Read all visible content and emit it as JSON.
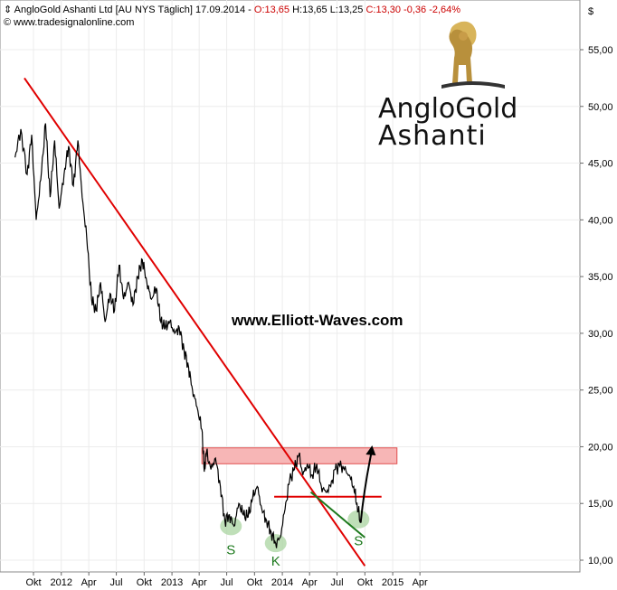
{
  "header": {
    "symbol_icon": "instrument-icon",
    "title": "AngloGold Ashanti Ltd",
    "exchange": "[AU NYS  Täglich]",
    "date": "17.09.2014",
    "open": "O:13,65",
    "high": "H:13,65",
    "low": "L:13,25",
    "close": "C:13,30",
    "change": "-0,36",
    "change_pct": "-2,64%",
    "source": "© www.tradesignalonline.com"
  },
  "watermark": "www.Elliott-Waves.com",
  "logo": {
    "line1": "AngloGold",
    "line2": "Ashanti",
    "icon": "lion-icon"
  },
  "colors": {
    "price": "#000000",
    "trendline": "#e00000",
    "resistance_band": "#f7b6b6",
    "support": "#e00000",
    "green": "#1e7a1e",
    "green_fill": "#a9d4a0"
  },
  "chart_data": {
    "type": "line",
    "currency_label": "$",
    "y_ticks": [
      "55,00",
      "50,00",
      "45,00",
      "40,00",
      "35,00",
      "30,00",
      "25,00",
      "20,00",
      "15,00",
      "10,00"
    ],
    "y_tick_values": [
      55,
      50,
      45,
      40,
      35,
      30,
      25,
      20,
      15,
      10
    ],
    "x_ticks": [
      "Okt",
      "2012",
      "Apr",
      "Jul",
      "Okt",
      "2013",
      "Apr",
      "Jul",
      "Okt",
      "2014",
      "Apr",
      "Jul",
      "Okt",
      "2015",
      "Apr"
    ],
    "x_tick_dates": [
      "2011-10",
      "2012-01",
      "2012-04",
      "2012-07",
      "2012-10",
      "2013-01",
      "2013-04",
      "2013-07",
      "2013-10",
      "2014-01",
      "2014-04",
      "2014-07",
      "2014-10",
      "2015-01",
      "2015-04"
    ],
    "ylim": [
      9.5,
      57.5
    ],
    "series": [
      {
        "values": [
          [
            "2011-08-01",
            45.5
          ],
          [
            "2011-08-20",
            48.0
          ],
          [
            "2011-09-10",
            44.0
          ],
          [
            "2011-09-25",
            47.5
          ],
          [
            "2011-10-10",
            40.0
          ],
          [
            "2011-10-25",
            43.5
          ],
          [
            "2011-11-10",
            48.5
          ],
          [
            "2011-11-25",
            42.0
          ],
          [
            "2011-12-10",
            47.0
          ],
          [
            "2011-12-25",
            41.0
          ],
          [
            "2012-01-10",
            44.0
          ],
          [
            "2012-01-25",
            46.5
          ],
          [
            "2012-02-10",
            43.0
          ],
          [
            "2012-02-25",
            47.0
          ],
          [
            "2012-03-10",
            42.0
          ],
          [
            "2012-03-25",
            38.5
          ],
          [
            "2012-04-10",
            33.0
          ],
          [
            "2012-04-25",
            32.0
          ],
          [
            "2012-05-10",
            34.5
          ],
          [
            "2012-05-25",
            31.0
          ],
          [
            "2012-06-10",
            33.5
          ],
          [
            "2012-06-25",
            32.0
          ],
          [
            "2012-07-10",
            36.0
          ],
          [
            "2012-07-25",
            33.0
          ],
          [
            "2012-08-10",
            34.5
          ],
          [
            "2012-08-25",
            32.5
          ],
          [
            "2012-09-10",
            35.0
          ],
          [
            "2012-09-25",
            36.5
          ],
          [
            "2012-10-10",
            34.5
          ],
          [
            "2012-10-25",
            33.0
          ],
          [
            "2012-11-10",
            34.0
          ],
          [
            "2012-11-25",
            31.0
          ],
          [
            "2012-12-10",
            30.5
          ],
          [
            "2012-12-25",
            31.0
          ],
          [
            "2013-01-10",
            30.0
          ],
          [
            "2013-01-25",
            30.5
          ],
          [
            "2013-02-10",
            28.5
          ],
          [
            "2013-02-25",
            27.0
          ],
          [
            "2013-03-10",
            25.0
          ],
          [
            "2013-03-25",
            23.5
          ],
          [
            "2013-04-10",
            21.5
          ],
          [
            "2013-04-18",
            17.8
          ],
          [
            "2013-04-25",
            19.5
          ],
          [
            "2013-05-10",
            18.0
          ],
          [
            "2013-05-25",
            19.0
          ],
          [
            "2013-06-10",
            16.5
          ],
          [
            "2013-06-25",
            13.5
          ],
          [
            "2013-07-10",
            14.0
          ],
          [
            "2013-07-25",
            13.0
          ],
          [
            "2013-08-10",
            15.0
          ],
          [
            "2013-08-25",
            14.0
          ],
          [
            "2013-09-10",
            13.8
          ],
          [
            "2013-09-25",
            15.5
          ],
          [
            "2013-10-10",
            16.5
          ],
          [
            "2013-10-25",
            14.5
          ],
          [
            "2013-11-10",
            13.5
          ],
          [
            "2013-11-25",
            12.5
          ],
          [
            "2013-12-10",
            11.5
          ],
          [
            "2013-12-25",
            12.0
          ],
          [
            "2014-01-10",
            14.5
          ],
          [
            "2014-01-25",
            17.0
          ],
          [
            "2014-02-10",
            18.0
          ],
          [
            "2014-02-25",
            19.3
          ],
          [
            "2014-03-10",
            17.5
          ],
          [
            "2014-03-25",
            18.5
          ],
          [
            "2014-04-10",
            17.5
          ],
          [
            "2014-04-25",
            18.5
          ],
          [
            "2014-05-10",
            16.5
          ],
          [
            "2014-05-25",
            16.0
          ],
          [
            "2014-06-10",
            16.5
          ],
          [
            "2014-06-25",
            18.0
          ],
          [
            "2014-07-10",
            18.3
          ],
          [
            "2014-07-25",
            18.0
          ],
          [
            "2014-08-10",
            17.5
          ],
          [
            "2014-08-25",
            16.5
          ],
          [
            "2014-09-05",
            15.0
          ],
          [
            "2014-09-17",
            13.3
          ]
        ]
      }
    ],
    "trendline": {
      "start": [
        "2011-09-01",
        52.5
      ],
      "end": [
        "2014-10-01",
        9.5
      ]
    },
    "resistance_band": {
      "from": "2013-04-10",
      "to": "2015-01-15",
      "low": 18.5,
      "high": 19.9
    },
    "support_line": {
      "from": "2013-12-05",
      "to": "2014-11-25",
      "value": 15.6
    },
    "green_trendline": {
      "start": [
        "2014-04-05",
        16.0
      ],
      "end": [
        "2014-10-01",
        12.0
      ]
    },
    "projection_arrow": {
      "start": [
        "2014-09-17",
        13.3
      ],
      "end": [
        "2014-10-25",
        19.8
      ]
    },
    "annotations": [
      {
        "label": "S",
        "date": "2013-07-15",
        "value": 13.0,
        "label_value": 11.0
      },
      {
        "label": "K",
        "date": "2013-12-10",
        "value": 11.5,
        "label_value": 10.0
      },
      {
        "label": "S",
        "date": "2014-09-10",
        "value": 13.6,
        "label_value": 11.8
      }
    ]
  }
}
